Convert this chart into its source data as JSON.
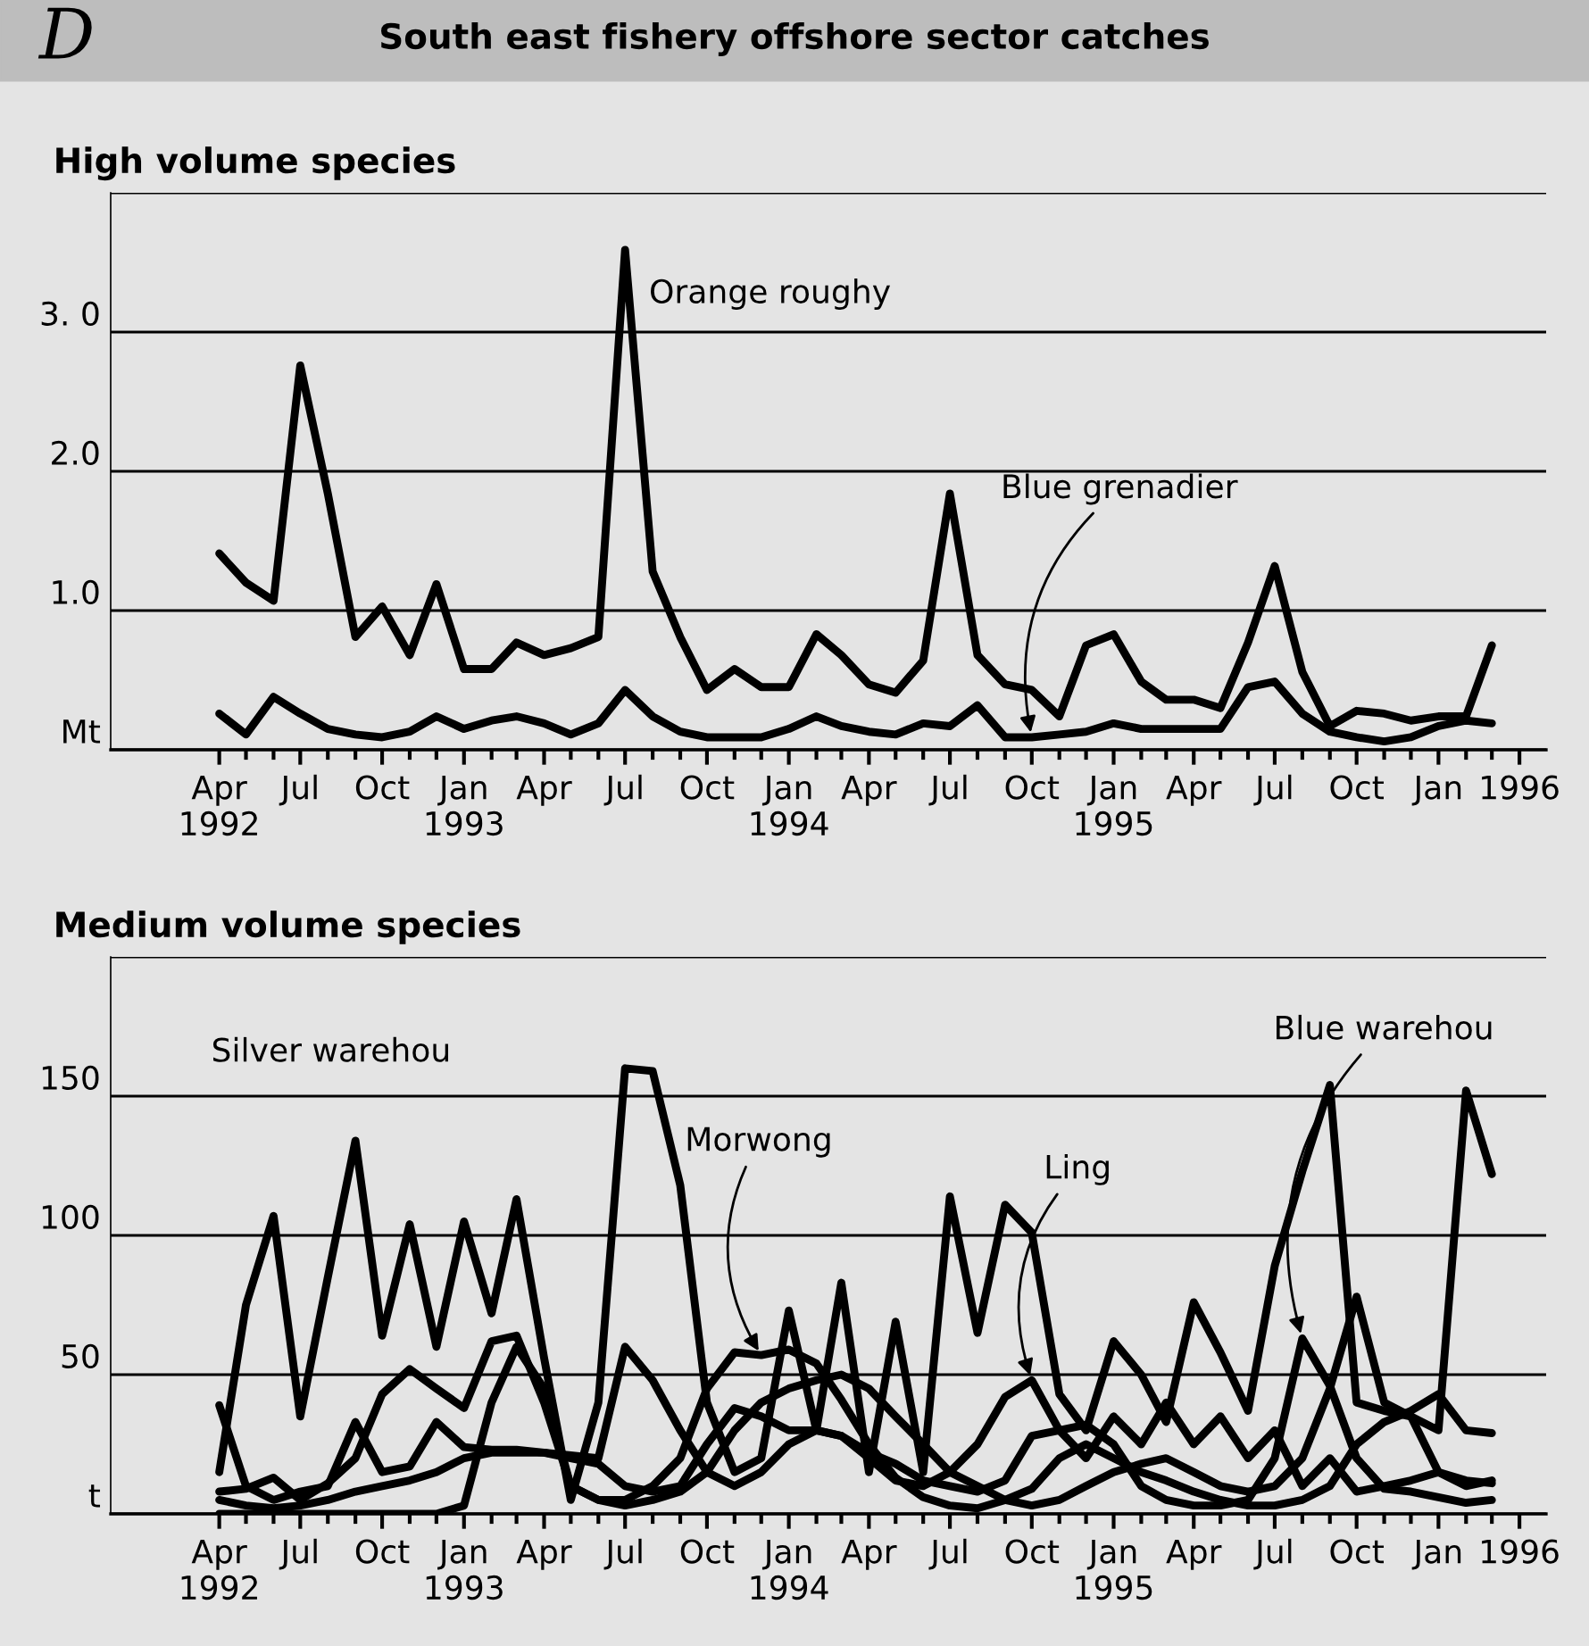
{
  "chart_data": [
    {
      "type": "line",
      "title": "South east fishery offshore sector catches",
      "subtitle": "High volume species",
      "annotations": [
        "D"
      ],
      "x": [
        "1992-04",
        "1992-05",
        "1992-06",
        "1992-07",
        "1992-08",
        "1992-09",
        "1992-10",
        "1992-11",
        "1992-12",
        "1993-01",
        "1993-02",
        "1993-03",
        "1993-04",
        "1993-05",
        "1993-06",
        "1993-07",
        "1993-08",
        "1993-09",
        "1993-10",
        "1993-11",
        "1993-12",
        "1994-01",
        "1994-02",
        "1994-03",
        "1994-04",
        "1994-05",
        "1994-06",
        "1994-07",
        "1994-08",
        "1994-09",
        "1994-10",
        "1994-11",
        "1994-12",
        "1995-01",
        "1995-02",
        "1995-03",
        "1995-04",
        "1995-05",
        "1995-06",
        "1995-07",
        "1995-08",
        "1995-09",
        "1995-10",
        "1995-11",
        "1995-12",
        "1996-01",
        "1996-02",
        "1996-03"
      ],
      "series": [
        {
          "name": "Orange roughy",
          "color": "#000000",
          "values": [
            1.41,
            1.2,
            1.07,
            2.76,
            1.84,
            0.81,
            1.03,
            0.68,
            1.19,
            0.58,
            0.58,
            0.77,
            0.68,
            0.73,
            0.81,
            3.59,
            1.28,
            0.81,
            0.43,
            0.58,
            0.45,
            0.45,
            0.83,
            0.68,
            0.47,
            0.41,
            0.64,
            1.84,
            0.68,
            0.47,
            0.43,
            0.24,
            0.75,
            0.83,
            0.49,
            0.36,
            0.36,
            0.3,
            0.77,
            1.32,
            0.56,
            0.17,
            0.28,
            0.26,
            0.21,
            0.24,
            0.24,
            0.75
          ]
        },
        {
          "name": "Blue grenadier",
          "color": "#000000",
          "values": [
            0.26,
            0.11,
            0.38,
            0.26,
            0.15,
            0.11,
            0.09,
            0.13,
            0.24,
            0.15,
            0.21,
            0.24,
            0.19,
            0.11,
            0.19,
            0.43,
            0.24,
            0.13,
            0.09,
            0.09,
            0.09,
            0.15,
            0.24,
            0.17,
            0.13,
            0.11,
            0.19,
            0.17,
            0.32,
            0.09,
            0.09,
            0.11,
            0.13,
            0.19,
            0.15,
            0.15,
            0.15,
            0.15,
            0.45,
            0.49,
            0.26,
            0.13,
            0.09,
            0.06,
            0.09,
            0.17,
            0.21,
            0.19
          ]
        }
      ],
      "xlim": [
        "1991-12",
        "1996-05"
      ],
      "xticks": [
        {
          "value": "1992-04",
          "label": "Apr\n1992"
        },
        {
          "value": "1992-05",
          "label": null
        },
        {
          "value": "1992-06",
          "label": null
        },
        {
          "value": "1992-07",
          "label": "Jul"
        },
        {
          "value": "1992-08",
          "label": null
        },
        {
          "value": "1992-09",
          "label": null
        },
        {
          "value": "1992-10",
          "label": "Oct"
        },
        {
          "value": "1992-11",
          "label": null
        },
        {
          "value": "1992-12",
          "label": null
        },
        {
          "value": "1993-01",
          "label": "Jan\n1993"
        },
        {
          "value": "1993-02",
          "label": null
        },
        {
          "value": "1993-03",
          "label": null
        },
        {
          "value": "1993-04",
          "label": "Apr"
        },
        {
          "value": "1993-05",
          "label": null
        },
        {
          "value": "1993-06",
          "label": null
        },
        {
          "value": "1993-07",
          "label": "Jul"
        },
        {
          "value": "1993-08",
          "label": null
        },
        {
          "value": "1993-09",
          "label": null
        },
        {
          "value": "1993-10",
          "label": "Oct"
        },
        {
          "value": "1993-11",
          "label": null
        },
        {
          "value": "1993-12",
          "label": null
        },
        {
          "value": "1994-01",
          "label": "Jan\n1994"
        },
        {
          "value": "1994-02",
          "label": null
        },
        {
          "value": "1994-03",
          "label": null
        },
        {
          "value": "1994-04",
          "label": "Apr"
        },
        {
          "value": "1994-05",
          "label": null
        },
        {
          "value": "1994-06",
          "label": null
        },
        {
          "value": "1994-07",
          "label": "Jul"
        },
        {
          "value": "1994-08",
          "label": null
        },
        {
          "value": "1994-09",
          "label": null
        },
        {
          "value": "1994-10",
          "label": "Oct"
        },
        {
          "value": "1994-11",
          "label": null
        },
        {
          "value": "1994-12",
          "label": null
        },
        {
          "value": "1995-01",
          "label": "Jan\n1995"
        },
        {
          "value": "1995-02",
          "label": null
        },
        {
          "value": "1995-03",
          "label": null
        },
        {
          "value": "1995-04",
          "label": "Apr"
        },
        {
          "value": "1995-05",
          "label": null
        },
        {
          "value": "1995-06",
          "label": null
        },
        {
          "value": "1995-07",
          "label": "Jul"
        },
        {
          "value": "1995-08",
          "label": null
        },
        {
          "value": "1995-09",
          "label": null
        },
        {
          "value": "1995-10",
          "label": "Oct"
        },
        {
          "value": "1995-11",
          "label": null
        },
        {
          "value": "1995-12",
          "label": null
        },
        {
          "value": "1996-01",
          "label": "Jan"
        },
        {
          "value": "1996-02",
          "label": null
        },
        {
          "value": "1996-03",
          "label": null
        },
        {
          "value": "1996-04",
          "label": "1996"
        }
      ],
      "ylim": [
        0,
        4
      ],
      "yticks": [
        {
          "value": 0,
          "label": "Mt"
        },
        {
          "value": 1,
          "label": "1.0"
        },
        {
          "value": 2,
          "label": "2.0"
        },
        {
          "value": 3,
          "label": "3. 0"
        },
        {
          "value": 4,
          "label": null
        }
      ],
      "grid": "y",
      "legend": false,
      "marker": "none",
      "line_style": "solid"
    },
    {
      "type": "line",
      "subtitle": "Medium volume species",
      "x": [
        "1992-04",
        "1992-05",
        "1992-06",
        "1992-07",
        "1992-08",
        "1992-09",
        "1992-10",
        "1992-11",
        "1992-12",
        "1993-01",
        "1993-02",
        "1993-03",
        "1993-04",
        "1993-05",
        "1993-06",
        "1993-07",
        "1993-08",
        "1993-09",
        "1993-10",
        "1993-11",
        "1993-12",
        "1994-01",
        "1994-02",
        "1994-03",
        "1994-04",
        "1994-05",
        "1994-06",
        "1994-07",
        "1994-08",
        "1994-09",
        "1994-10",
        "1994-11",
        "1994-12",
        "1995-01",
        "1995-02",
        "1995-03",
        "1995-04",
        "1995-05",
        "1995-06",
        "1995-07",
        "1995-08",
        "1995-09",
        "1995-10",
        "1995-11",
        "1995-12",
        "1996-01",
        "1996-02",
        "1996-03"
      ],
      "series": [
        {
          "name": "Silver warehou",
          "color": "#000000",
          "values": [
            15,
            75,
            107,
            35,
            85,
            134,
            64,
            104,
            60,
            105,
            72,
            113,
            56,
            5,
            40,
            160,
            159,
            118,
            40,
            15,
            20,
            73,
            30,
            83,
            15,
            69,
            15,
            114,
            65,
            111,
            101,
            43,
            30,
            62,
            50,
            33,
            76,
            58,
            37,
            89,
            123,
            154,
            40,
            37,
            35,
            30,
            152,
            122
          ]
        },
        {
          "name": "Morwong",
          "color": "#000000",
          "values": [
            8,
            9,
            13,
            5,
            11,
            20,
            43,
            52,
            45,
            38,
            62,
            64,
            40,
            10,
            5,
            5,
            10,
            20,
            45,
            58,
            57,
            59,
            54,
            41,
            25,
            13,
            6,
            3,
            2,
            5,
            9,
            20,
            25,
            20,
            15,
            12,
            8,
            5,
            3,
            3,
            5,
            10,
            25,
            33,
            37,
            43,
            30,
            29
          ]
        },
        {
          "name": "Ling",
          "color": "#000000",
          "values": [
            5,
            3,
            2,
            3,
            5,
            8,
            10,
            12,
            15,
            20,
            22,
            22,
            22,
            20,
            18,
            10,
            8,
            10,
            25,
            38,
            35,
            30,
            30,
            28,
            20,
            12,
            10,
            15,
            25,
            42,
            48,
            30,
            20,
            35,
            25,
            40,
            25,
            35,
            20,
            30,
            10,
            20,
            8,
            10,
            12,
            15,
            10,
            12
          ]
        },
        {
          "name": "Blue warehou",
          "color": "#000000",
          "values": [
            39,
            10,
            5,
            8,
            10,
            33,
            15,
            17,
            33,
            24,
            23,
            23,
            22,
            21,
            20,
            60,
            48,
            30,
            15,
            10,
            15,
            25,
            30,
            28,
            22,
            18,
            12,
            10,
            8,
            12,
            28,
            30,
            32,
            25,
            10,
            5,
            3,
            3,
            5,
            20,
            63,
            46,
            20,
            9,
            8,
            6,
            4,
            5
          ]
        },
        {
          "color": "#000000",
          "values": [
            0,
            0,
            0,
            0,
            0,
            0,
            0,
            0,
            0,
            3,
            40,
            60,
            45,
            10,
            5,
            3,
            5,
            8,
            15,
            30,
            40,
            45,
            48,
            50,
            45,
            35,
            25,
            15,
            10,
            5,
            3,
            5,
            10,
            15,
            18,
            20,
            15,
            10,
            8,
            10,
            20,
            45,
            78,
            40,
            35,
            15,
            12,
            11
          ]
        }
      ],
      "xlim": [
        "1991-12",
        "1996-05"
      ],
      "xticks": [
        {
          "value": "1992-04",
          "label": "Apr\n1992"
        },
        {
          "value": "1992-05",
          "label": null
        },
        {
          "value": "1992-06",
          "label": null
        },
        {
          "value": "1992-07",
          "label": "Jul"
        },
        {
          "value": "1992-08",
          "label": null
        },
        {
          "value": "1992-09",
          "label": null
        },
        {
          "value": "1992-10",
          "label": "Oct"
        },
        {
          "value": "1992-11",
          "label": null
        },
        {
          "value": "1992-12",
          "label": null
        },
        {
          "value": "1993-01",
          "label": "Jan\n1993"
        },
        {
          "value": "1993-02",
          "label": null
        },
        {
          "value": "1993-03",
          "label": null
        },
        {
          "value": "1993-04",
          "label": "Apr"
        },
        {
          "value": "1993-05",
          "label": null
        },
        {
          "value": "1993-06",
          "label": null
        },
        {
          "value": "1993-07",
          "label": "Jul"
        },
        {
          "value": "1993-08",
          "label": null
        },
        {
          "value": "1993-09",
          "label": null
        },
        {
          "value": "1993-10",
          "label": "Oct"
        },
        {
          "value": "1993-11",
          "label": null
        },
        {
          "value": "1993-12",
          "label": null
        },
        {
          "value": "1994-01",
          "label": "Jan\n1994"
        },
        {
          "value": "1994-02",
          "label": null
        },
        {
          "value": "1994-03",
          "label": null
        },
        {
          "value": "1994-04",
          "label": "Apr"
        },
        {
          "value": "1994-05",
          "label": null
        },
        {
          "value": "1994-06",
          "label": null
        },
        {
          "value": "1994-07",
          "label": "Jul"
        },
        {
          "value": "1994-08",
          "label": null
        },
        {
          "value": "1994-09",
          "label": null
        },
        {
          "value": "1994-10",
          "label": "Oct"
        },
        {
          "value": "1994-11",
          "label": null
        },
        {
          "value": "1994-12",
          "label": null
        },
        {
          "value": "1995-01",
          "label": "Jan\n1995"
        },
        {
          "value": "1995-02",
          "label": null
        },
        {
          "value": "1995-03",
          "label": null
        },
        {
          "value": "1995-04",
          "label": "Apr"
        },
        {
          "value": "1995-05",
          "label": null
        },
        {
          "value": "1995-06",
          "label": null
        },
        {
          "value": "1995-07",
          "label": "Jul"
        },
        {
          "value": "1995-08",
          "label": null
        },
        {
          "value": "1995-09",
          "label": null
        },
        {
          "value": "1995-10",
          "label": "Oct"
        },
        {
          "value": "1995-11",
          "label": null
        },
        {
          "value": "1995-12",
          "label": null
        },
        {
          "value": "1996-01",
          "label": "Jan"
        },
        {
          "value": "1996-02",
          "label": null
        },
        {
          "value": "1996-03",
          "label": null
        },
        {
          "value": "1996-04",
          "label": "1996"
        }
      ],
      "ylim": [
        0,
        200
      ],
      "yticks": [
        {
          "value": 0,
          "label": "t"
        },
        50,
        100,
        150,
        {
          "value": 200,
          "label": null
        }
      ],
      "grid": "y",
      "legend": false,
      "marker": "none",
      "line_style": "solid"
    }
  ]
}
